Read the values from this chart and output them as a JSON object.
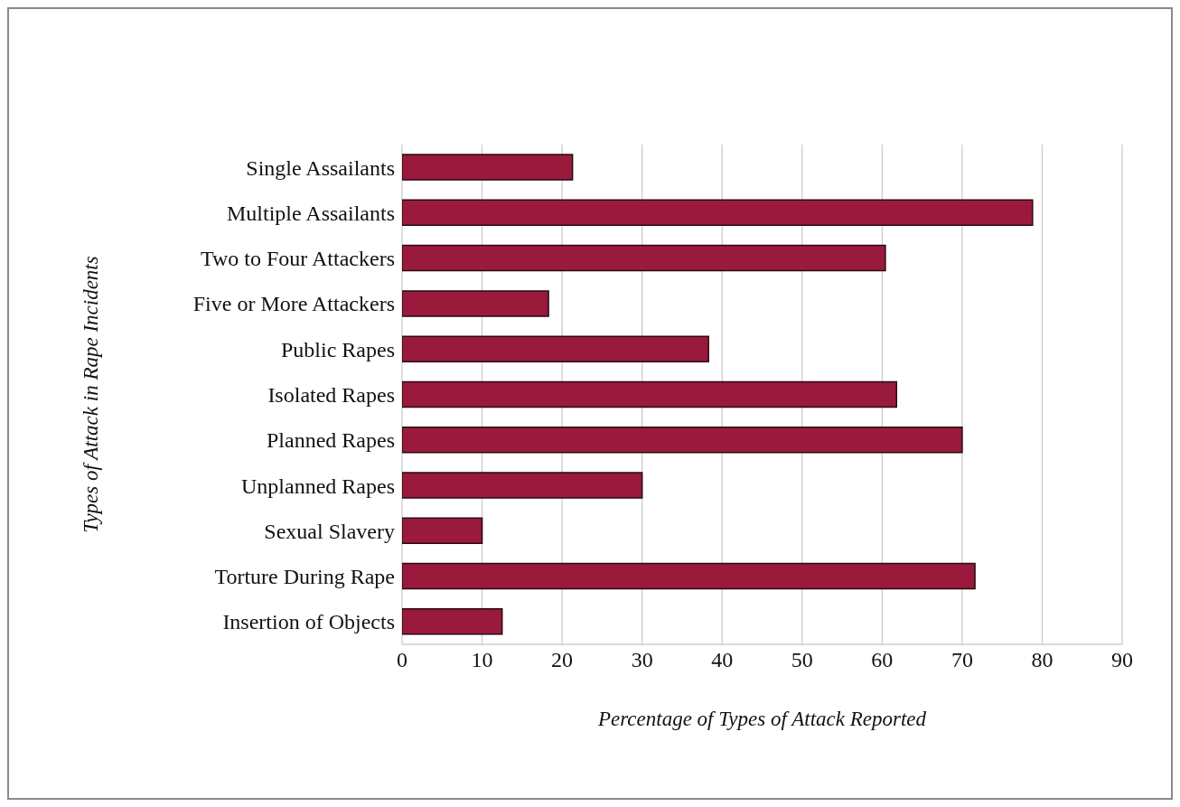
{
  "chart_data": {
    "type": "bar",
    "orientation": "horizontal",
    "xlabel": "Percentage of Types of Attack Reported",
    "ylabel": "Types of Attack in Rape Incidents",
    "categories": [
      "Single Assailants",
      "Multiple Assailants",
      "Two to Four Attackers",
      "Five or More Attackers",
      "Public Rapes",
      "Isolated Rapes",
      "Planned Rapes",
      "Unplanned Rapes",
      "Sexual Slavery",
      "Torture During Rape",
      "Insertion of Objects"
    ],
    "values": [
      21.3,
      78.8,
      60.4,
      18.3,
      38.3,
      61.8,
      70,
      30,
      10,
      71.6,
      12.5
    ],
    "color": "#991a3c",
    "xlim": [
      0,
      90
    ],
    "xticks": [
      0,
      10,
      20,
      30,
      40,
      50,
      60,
      70,
      80,
      90
    ],
    "grid": "x"
  }
}
